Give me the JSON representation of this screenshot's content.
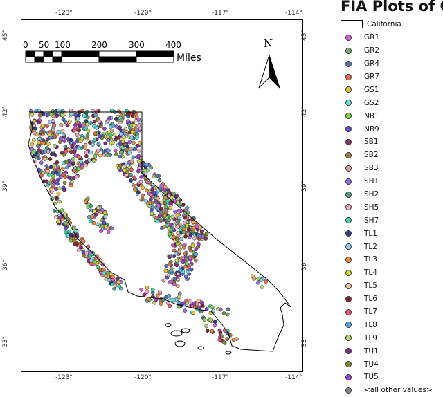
{
  "legend": {
    "title": "FIA Plots of Cal",
    "boundary_label": "California",
    "items": [
      {
        "code": "GR1",
        "color": "#d85ad8"
      },
      {
        "code": "GR2",
        "color": "#73b26b"
      },
      {
        "code": "GR4",
        "color": "#4a78b8"
      },
      {
        "code": "GR7",
        "color": "#ee6b4a"
      },
      {
        "code": "GS1",
        "color": "#e9c33c"
      },
      {
        "code": "GS2",
        "color": "#5fe0e0"
      },
      {
        "code": "NB1",
        "color": "#7ad64c"
      },
      {
        "code": "NB9",
        "color": "#5a4fd6"
      },
      {
        "code": "SB1",
        "color": "#8c2f6a"
      },
      {
        "code": "SB2",
        "color": "#a37a3c"
      },
      {
        "code": "SB3",
        "color": "#e6a08a"
      },
      {
        "code": "SH1",
        "color": "#9b6be0"
      },
      {
        "code": "SH2",
        "color": "#4e9c88"
      },
      {
        "code": "SH5",
        "color": "#f0a8c8"
      },
      {
        "code": "SH7",
        "color": "#3ad6a8"
      },
      {
        "code": "TL1",
        "color": "#2b3a8c"
      },
      {
        "code": "TL2",
        "color": "#8fd0ee"
      },
      {
        "code": "TL3",
        "color": "#e88a3a"
      },
      {
        "code": "TL4",
        "color": "#d6d63a"
      },
      {
        "code": "TL5",
        "color": "#f4c6a0"
      },
      {
        "code": "TL6",
        "color": "#7a2a2a"
      },
      {
        "code": "TL7",
        "color": "#f05a6e"
      },
      {
        "code": "TL8",
        "color": "#58a6e0"
      },
      {
        "code": "TL9",
        "color": "#b6d86a"
      },
      {
        "code": "TU1",
        "color": "#7a2a8a"
      },
      {
        "code": "TU4",
        "color": "#8a8a2a"
      },
      {
        "code": "TU5",
        "color": "#9a3ad0"
      },
      {
        "code": "<all other values>",
        "color": "#888888"
      }
    ]
  },
  "longitude_labels": [
    "-123°",
    "-120°",
    "-117°",
    "-114°"
  ],
  "latitude_labels": [
    "45°",
    "42°",
    "39°",
    "36°",
    "33°"
  ],
  "scale_bar": {
    "ticks": [
      "0",
      "50",
      "100",
      "200",
      "300",
      "400"
    ],
    "unit": "Miles"
  },
  "north_arrow": {
    "label": "N"
  },
  "colors": {
    "boundary": "#000000",
    "dot_outline": "#222222"
  }
}
